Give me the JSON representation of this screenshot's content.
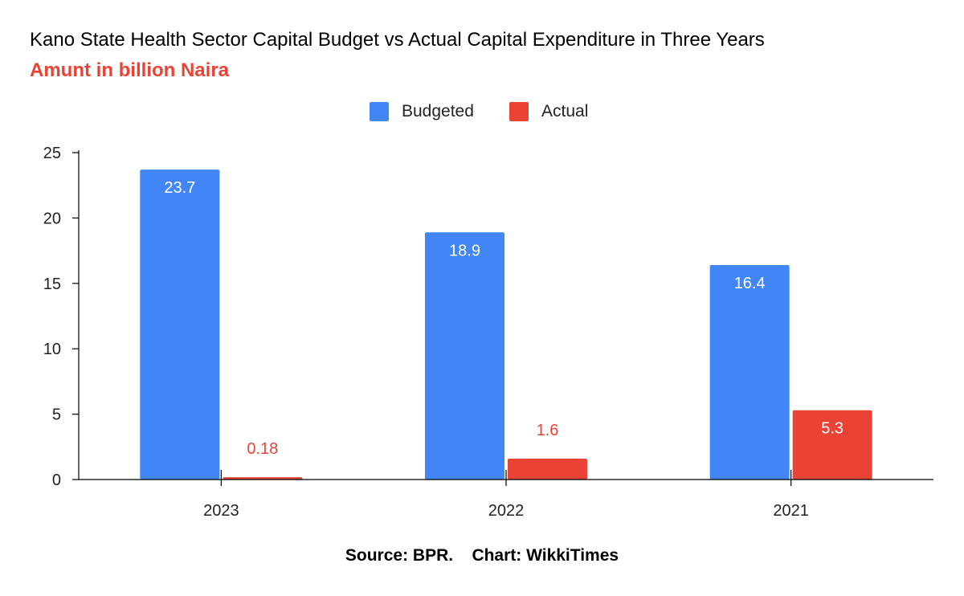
{
  "chart_data": {
    "type": "bar",
    "title": "Kano State Health Sector Capital Budget vs Actual Capital Expenditure in Three Years",
    "subtitle": "Amunt in billion Naira",
    "categories": [
      "2023",
      "2022",
      "2021"
    ],
    "series": [
      {
        "name": "Budgeted",
        "values": [
          23.7,
          18.9,
          16.4
        ],
        "labels": [
          "23.7",
          "18.9",
          "16.4"
        ],
        "color": "#4285F4"
      },
      {
        "name": "Actual",
        "values": [
          0.18,
          1.6,
          5.3
        ],
        "labels": [
          "0.18",
          "1.6",
          "5.3"
        ],
        "color": "#EA4335"
      }
    ],
    "yticks": [
      "0",
      "5",
      "10",
      "15",
      "20",
      "25"
    ],
    "ylim": [
      0,
      25
    ],
    "xlabel": "",
    "ylabel": "",
    "grid": false,
    "legend": "top"
  },
  "colors": {
    "subtitle": "#EA4335",
    "axis": "#000000"
  },
  "footer": {
    "source": "Source: BPR.",
    "credit": "Chart: WikkiTimes"
  }
}
